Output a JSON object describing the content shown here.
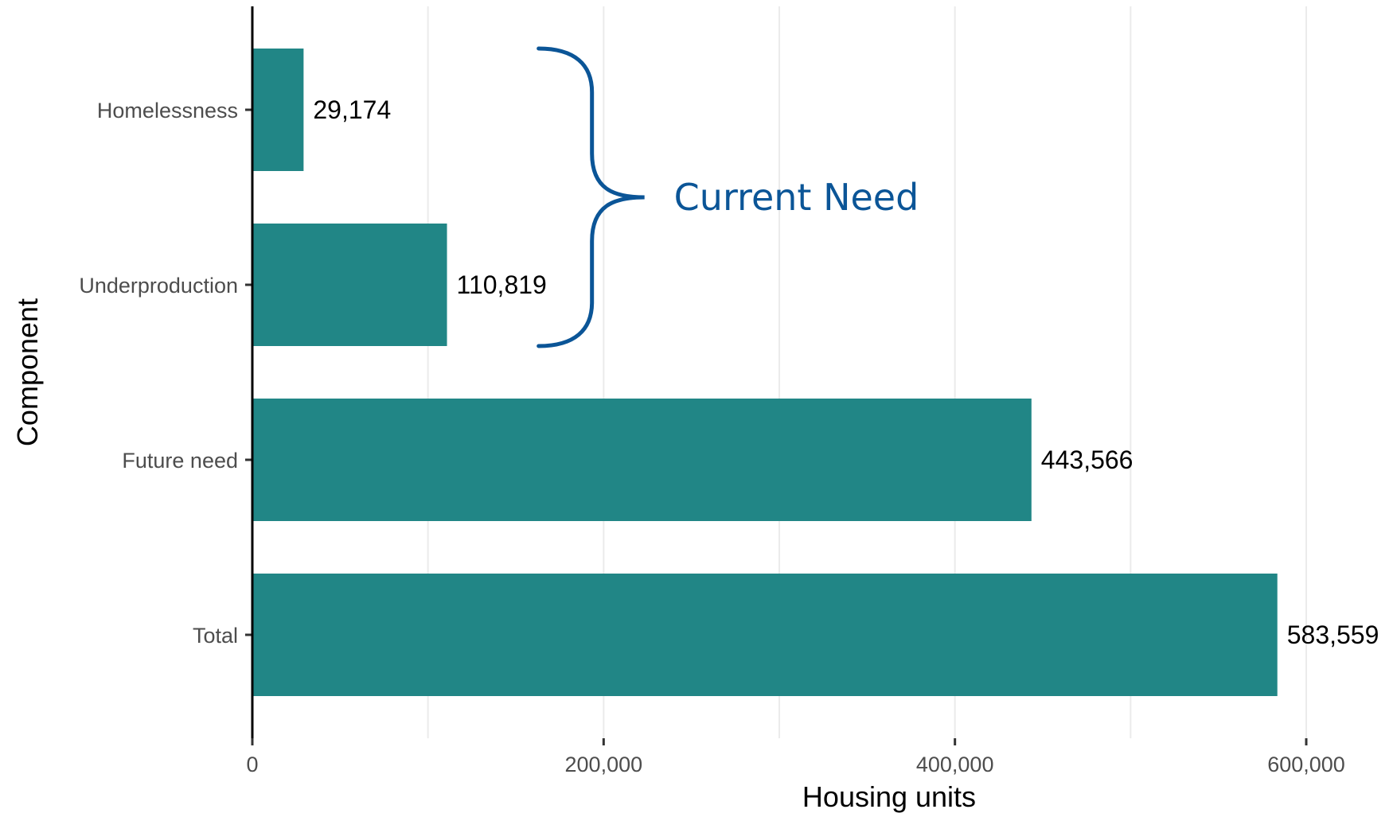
{
  "chart_data": {
    "type": "bar",
    "orientation": "horizontal",
    "title": "",
    "xlabel": "Housing units",
    "ylabel": "Component",
    "categories": [
      "Homelessness",
      "Underproduction",
      "Future need",
      "Total"
    ],
    "values": [
      29174,
      110819,
      443566,
      583559
    ],
    "value_labels": [
      "29,174",
      "110,819",
      "443,566",
      "583,559"
    ],
    "xlim": [
      0,
      640000
    ],
    "x_ticks": [
      0,
      200000,
      400000,
      600000
    ],
    "x_tick_labels": [
      "0",
      "200,000",
      "400,000",
      "600,000"
    ],
    "grid": "vertical",
    "legend": "none",
    "annotations": [
      {
        "text": "Current Need",
        "spans_categories": [
          "Homelessness",
          "Underproduction"
        ],
        "x_data": 163000
      }
    ]
  },
  "colors": {
    "bar": "#218686",
    "annotation": "#0b5597",
    "grid": "#ebebeb",
    "axis": "#000000"
  }
}
